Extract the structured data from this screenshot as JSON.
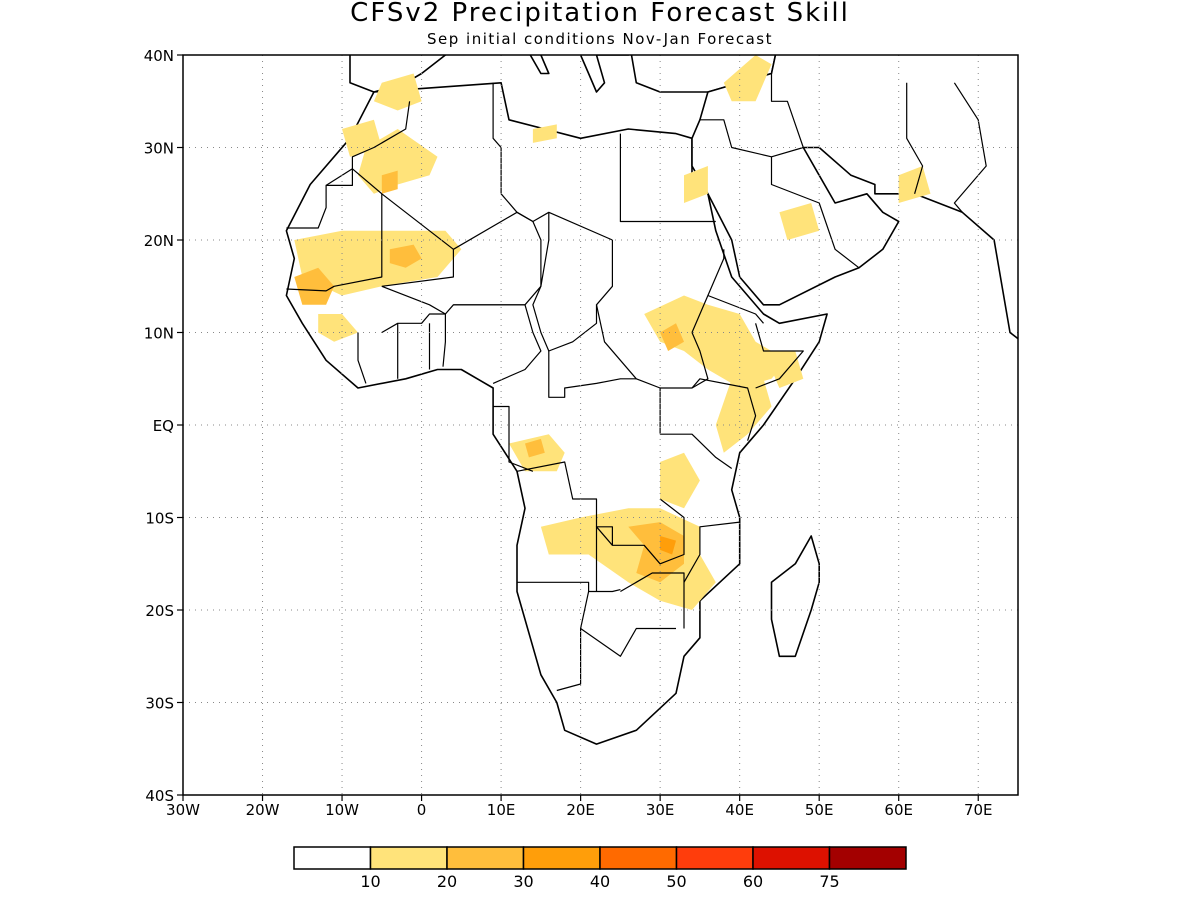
{
  "title": "CFSv2 Precipitation Forecast Skill",
  "subtitle": "Sep initial conditions  Nov-Jan Forecast",
  "map": {
    "lon_range": [
      -30,
      75
    ],
    "lat_range": [
      -40,
      40
    ],
    "x_ticks": [
      {
        "lon": -30,
        "label": "30W"
      },
      {
        "lon": -20,
        "label": "20W"
      },
      {
        "lon": -10,
        "label": "10W"
      },
      {
        "lon": 0,
        "label": "0"
      },
      {
        "lon": 10,
        "label": "10E"
      },
      {
        "lon": 20,
        "label": "20E"
      },
      {
        "lon": 30,
        "label": "30E"
      },
      {
        "lon": 40,
        "label": "40E"
      },
      {
        "lon": 50,
        "label": "50E"
      },
      {
        "lon": 60,
        "label": "60E"
      },
      {
        "lon": 70,
        "label": "70E"
      }
    ],
    "y_ticks": [
      {
        "lat": 40,
        "label": "40N"
      },
      {
        "lat": 30,
        "label": "30N"
      },
      {
        "lat": 20,
        "label": "20N"
      },
      {
        "lat": 10,
        "label": "10N"
      },
      {
        "lat": 0,
        "label": "EQ"
      },
      {
        "lat": -10,
        "label": "10S"
      },
      {
        "lat": -20,
        "label": "20S"
      },
      {
        "lat": -30,
        "label": "30S"
      },
      {
        "lat": -40,
        "label": "40S"
      }
    ],
    "grid": true
  },
  "colorbar": {
    "colors": [
      "#ffffff",
      "#ffe37a",
      "#ffbe3c",
      "#ff9e0a",
      "#ff6a00",
      "#ff3d0c",
      "#dd1100",
      "#a30000"
    ],
    "labels": [
      "10",
      "20",
      "30",
      "40",
      "50",
      "60",
      "75"
    ]
  },
  "skill_regions": [
    {
      "name": "sahara-north-west",
      "level": 1,
      "pts": [
        [
          -7,
          30
        ],
        [
          -3,
          32
        ],
        [
          2,
          29
        ],
        [
          1,
          27
        ],
        [
          -3,
          26
        ],
        [
          -6,
          25
        ],
        [
          -8,
          27
        ]
      ]
    },
    {
      "name": "sahara-core",
      "level": 2,
      "pts": [
        [
          -5,
          27
        ],
        [
          -3,
          27.5
        ],
        [
          -3,
          25.5
        ],
        [
          -5,
          25
        ]
      ]
    },
    {
      "name": "morocco-north",
      "level": 1,
      "pts": [
        [
          -5,
          37
        ],
        [
          -1,
          38
        ],
        [
          0,
          35
        ],
        [
          -3,
          34
        ],
        [
          -6,
          35
        ]
      ]
    },
    {
      "name": "atlas",
      "level": 1,
      "pts": [
        [
          -10,
          32
        ],
        [
          -6,
          33
        ],
        [
          -5,
          30
        ],
        [
          -9,
          29
        ]
      ]
    },
    {
      "name": "mali-mauritania",
      "level": 1,
      "pts": [
        [
          -16,
          20
        ],
        [
          -10,
          21
        ],
        [
          -5,
          21
        ],
        [
          3,
          21
        ],
        [
          5,
          19
        ],
        [
          2,
          16
        ],
        [
          -5,
          15
        ],
        [
          -10,
          14
        ],
        [
          -15,
          16
        ]
      ]
    },
    {
      "name": "mali-core",
      "level": 2,
      "pts": [
        [
          -4,
          19
        ],
        [
          -1,
          19.5
        ],
        [
          0,
          18
        ],
        [
          -2,
          17
        ],
        [
          -4,
          17.5
        ]
      ]
    },
    {
      "name": "senegal-core",
      "level": 2,
      "pts": [
        [
          -16,
          16
        ],
        [
          -13,
          17
        ],
        [
          -11,
          15
        ],
        [
          -12,
          13
        ],
        [
          -15,
          13
        ]
      ]
    },
    {
      "name": "guinea",
      "level": 1,
      "pts": [
        [
          -13,
          12
        ],
        [
          -10,
          12
        ],
        [
          -8,
          10
        ],
        [
          -11,
          9
        ],
        [
          -13,
          10
        ]
      ]
    },
    {
      "name": "libya-coast",
      "level": 1,
      "pts": [
        [
          14,
          32
        ],
        [
          17,
          32.5
        ],
        [
          17,
          31
        ],
        [
          14,
          30.5
        ]
      ]
    },
    {
      "name": "egypt-east",
      "level": 1,
      "pts": [
        [
          33,
          27
        ],
        [
          36,
          28
        ],
        [
          36,
          25
        ],
        [
          33,
          24
        ]
      ]
    },
    {
      "name": "arabia-center",
      "level": 1,
      "pts": [
        [
          45,
          23
        ],
        [
          49,
          24
        ],
        [
          50,
          21
        ],
        [
          46,
          20
        ]
      ]
    },
    {
      "name": "iran-south",
      "level": 1,
      "pts": [
        [
          60,
          27
        ],
        [
          63,
          28
        ],
        [
          64,
          25
        ],
        [
          60,
          24
        ]
      ]
    },
    {
      "name": "turkey-levant",
      "level": 1,
      "pts": [
        [
          38,
          37
        ],
        [
          42,
          40
        ],
        [
          44,
          39
        ],
        [
          42,
          35
        ],
        [
          39,
          35
        ]
      ]
    },
    {
      "name": "sudan-ethiopia",
      "level": 1,
      "pts": [
        [
          28,
          12
        ],
        [
          33,
          14
        ],
        [
          36,
          13
        ],
        [
          40,
          12
        ],
        [
          42,
          9
        ],
        [
          46,
          7
        ],
        [
          44,
          5
        ],
        [
          40,
          4
        ],
        [
          36,
          6
        ],
        [
          33,
          8
        ],
        [
          30,
          9
        ]
      ]
    },
    {
      "name": "south-sudan-core",
      "level": 2,
      "pts": [
        [
          30,
          10
        ],
        [
          32,
          11
        ],
        [
          33,
          9
        ],
        [
          31,
          8
        ]
      ]
    },
    {
      "name": "kenya-east",
      "level": 1,
      "pts": [
        [
          39,
          5
        ],
        [
          43,
          5
        ],
        [
          44,
          2
        ],
        [
          41,
          -1
        ],
        [
          38,
          -3
        ],
        [
          37,
          0
        ]
      ]
    },
    {
      "name": "somalia",
      "level": 1,
      "pts": [
        [
          43,
          8
        ],
        [
          47,
          8
        ],
        [
          48,
          5
        ],
        [
          45,
          4
        ]
      ]
    },
    {
      "name": "congo-west",
      "level": 1,
      "pts": [
        [
          11,
          -2
        ],
        [
          16,
          -1
        ],
        [
          18,
          -3
        ],
        [
          17,
          -5
        ],
        [
          13,
          -5
        ]
      ]
    },
    {
      "name": "congo-core",
      "level": 2,
      "pts": [
        [
          13,
          -2
        ],
        [
          15,
          -1.5
        ],
        [
          15.5,
          -3
        ],
        [
          13.5,
          -3.5
        ]
      ]
    },
    {
      "name": "tanzania-west",
      "level": 1,
      "pts": [
        [
          30,
          -4
        ],
        [
          33,
          -3
        ],
        [
          35,
          -6
        ],
        [
          33,
          -9
        ],
        [
          30,
          -8
        ]
      ]
    },
    {
      "name": "zambia-angola",
      "level": 1,
      "pts": [
        [
          15,
          -11
        ],
        [
          20,
          -10
        ],
        [
          26,
          -9
        ],
        [
          30,
          -9
        ],
        [
          35,
          -11
        ],
        [
          35,
          -14
        ],
        [
          37,
          -17
        ],
        [
          34,
          -20
        ],
        [
          30,
          -19
        ],
        [
          26,
          -17
        ],
        [
          21,
          -14
        ],
        [
          16,
          -14
        ]
      ]
    },
    {
      "name": "zambia-core",
      "level": 2,
      "pts": [
        [
          26,
          -11
        ],
        [
          30,
          -10.5
        ],
        [
          33,
          -12
        ],
        [
          33,
          -15
        ],
        [
          30,
          -17
        ],
        [
          27,
          -16
        ],
        [
          28,
          -13
        ]
      ]
    },
    {
      "name": "zambia-deep",
      "level": 3,
      "pts": [
        [
          30,
          -12
        ],
        [
          32,
          -12.5
        ],
        [
          31.5,
          -14
        ],
        [
          30,
          -13.5
        ]
      ]
    }
  ]
}
